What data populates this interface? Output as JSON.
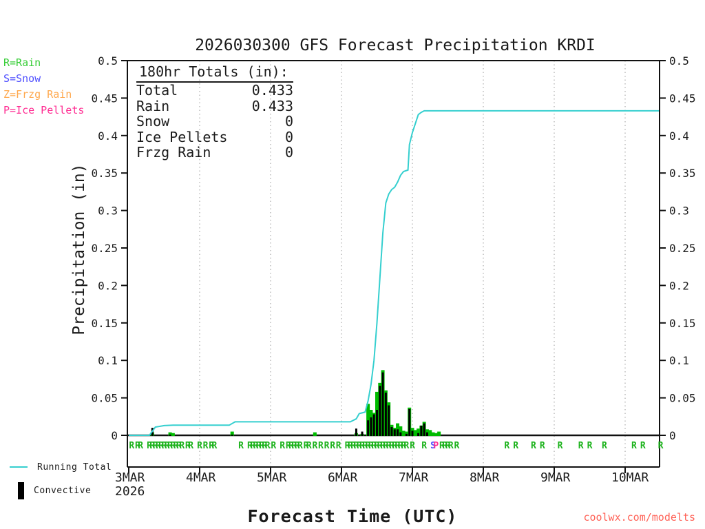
{
  "title": "2026030300 GFS Forecast Precipitation KRDI",
  "type_legend": [
    {
      "id": "rain",
      "label": "R=Rain",
      "color": "#33cc33"
    },
    {
      "id": "snow",
      "label": "S=Snow",
      "color": "#5050ff"
    },
    {
      "id": "frzg_rain",
      "label": "Z=Frzg Rain",
      "color": "#ffa84d"
    },
    {
      "id": "ice_pellets",
      "label": "P=Ice Pellets",
      "color": "#ff2e93"
    }
  ],
  "totals_box": {
    "header": "180hr Totals (in):",
    "rows": [
      {
        "label": "Total",
        "value": "0.433"
      },
      {
        "label": "Rain",
        "value": "0.433"
      },
      {
        "label": "Snow",
        "value": "0"
      },
      {
        "label": "Ice Pellets",
        "value": "0"
      },
      {
        "label": "Frzg Rain",
        "value": "0"
      }
    ]
  },
  "series_legend": {
    "running_total_label": "Running Total",
    "convective_label": "Convective"
  },
  "watermark": "coolwx.com/modelts",
  "chart_data": {
    "type": "line+bar",
    "title": "2026030300 GFS Forecast Precipitation KRDI",
    "xlabel": "Forecast Time (UTC)",
    "ylabel": "Precipitation (in)",
    "ylim": [
      0,
      0.5
    ],
    "ytick_step": 0.05,
    "ytick_labels": [
      "0",
      "0.05",
      "0.1",
      "0.15",
      "0.2",
      "0.25",
      "0.3",
      "0.35",
      "0.4",
      "0.45",
      "0.5"
    ],
    "x_day_labels": [
      "3MAR",
      "4MAR",
      "5MAR",
      "6MAR",
      "7MAR",
      "8MAR",
      "9MAR",
      "10MAR"
    ],
    "x_year_label": "2026",
    "x_range_hours": [
      0,
      180
    ],
    "grid": "vertical-dotted-daily",
    "running_total": {
      "name": "Running Total",
      "color": "#35cfcf",
      "points": [
        [
          0,
          0
        ],
        [
          7,
          0
        ],
        [
          9,
          0.011
        ],
        [
          12,
          0.013
        ],
        [
          15,
          0.0135
        ],
        [
          34,
          0.0135
        ],
        [
          36,
          0.018
        ],
        [
          75,
          0.018
        ],
        [
          77,
          0.022
        ],
        [
          78,
          0.029
        ],
        [
          79,
          0.03
        ],
        [
          80,
          0.031
        ],
        [
          81,
          0.046
        ],
        [
          82,
          0.068
        ],
        [
          83,
          0.1
        ],
        [
          84,
          0.15
        ],
        [
          85,
          0.21
        ],
        [
          86,
          0.27
        ],
        [
          87,
          0.31
        ],
        [
          88,
          0.322
        ],
        [
          89,
          0.328
        ],
        [
          90,
          0.331
        ],
        [
          91,
          0.338
        ],
        [
          92,
          0.347
        ],
        [
          93,
          0.352
        ],
        [
          94.5,
          0.354
        ],
        [
          95,
          0.388
        ],
        [
          96,
          0.404
        ],
        [
          97,
          0.416
        ],
        [
          98,
          0.428
        ],
        [
          99,
          0.431
        ],
        [
          100,
          0.433
        ],
        [
          179.5,
          0.433
        ]
      ]
    },
    "precip_bars": {
      "total_color": "#00bb00",
      "convective_color": "#000000",
      "bars_hour_total_convective": [
        [
          8,
          0.004,
          0.01
        ],
        [
          14,
          0.004,
          0.001
        ],
        [
          15,
          0.003,
          0
        ],
        [
          35,
          0.005,
          0.001
        ],
        [
          63,
          0.004,
          0
        ],
        [
          77,
          0.003,
          0.009
        ],
        [
          79,
          0.002,
          0.005
        ],
        [
          81,
          0.042,
          0.02
        ],
        [
          82,
          0.034,
          0.024
        ],
        [
          83,
          0.03,
          0.028
        ],
        [
          84,
          0.058,
          0.034
        ],
        [
          85,
          0.07,
          0.066
        ],
        [
          86,
          0.087,
          0.084
        ],
        [
          87,
          0.06,
          0.057
        ],
        [
          88,
          0.044,
          0.04
        ],
        [
          89,
          0.014,
          0.011
        ],
        [
          90,
          0.01,
          0.008
        ],
        [
          91,
          0.016,
          0.008
        ],
        [
          92,
          0.012,
          0.004
        ],
        [
          93,
          0.006,
          0
        ],
        [
          94,
          0.005,
          0.002
        ],
        [
          95,
          0.037,
          0.035
        ],
        [
          96,
          0.01,
          0.006
        ],
        [
          97,
          0.007,
          0
        ],
        [
          98,
          0.009,
          0.003
        ],
        [
          99,
          0.013,
          0.013
        ],
        [
          100,
          0.018,
          0.016
        ],
        [
          101,
          0.008,
          0.004
        ],
        [
          102,
          0.007,
          0
        ],
        [
          103,
          0.004,
          0
        ],
        [
          104,
          0.003,
          0
        ],
        [
          105,
          0.005,
          0
        ]
      ]
    },
    "ptype_markers": {
      "rain": {
        "char": "R",
        "color": "#1db31d",
        "hours": [
          1,
          3,
          4,
          7,
          8,
          9,
          10,
          11,
          12,
          13,
          14,
          15,
          16,
          17,
          18,
          20,
          21,
          24,
          26,
          28,
          29,
          38,
          41,
          42,
          43,
          44,
          45,
          46,
          47,
          49,
          52,
          54,
          55,
          56,
          57,
          58,
          60,
          61,
          63,
          65,
          67,
          69,
          71,
          74,
          75,
          76,
          77,
          78,
          79,
          80,
          81,
          82,
          83,
          84,
          85,
          86,
          87,
          88,
          89,
          90,
          91,
          92,
          93,
          94,
          96,
          100,
          106,
          107,
          108,
          109,
          111,
          128,
          131,
          137,
          140,
          146,
          153,
          156,
          161,
          171,
          174,
          180
        ]
      },
      "snow": {
        "char": "S",
        "color": "#5050ff",
        "hours": [
          103
        ]
      },
      "ice_pellets": {
        "char": "P",
        "color": "#ff2e93",
        "hours": [
          104
        ]
      }
    }
  }
}
